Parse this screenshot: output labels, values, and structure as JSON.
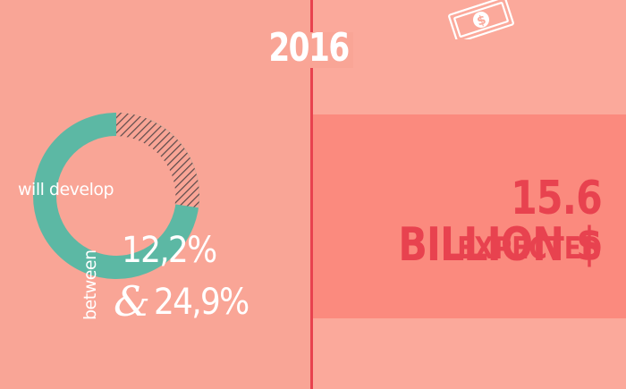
{
  "year": "2016",
  "donut": {
    "label": "will develop",
    "colors": {
      "filled": "#5cb8a4",
      "hatch": "#5a4a4a"
    }
  },
  "range": {
    "prefix": "between",
    "low": "12,2%",
    "amp": "&",
    "high": "24,9%"
  },
  "forecast": {
    "amount": "15.6 BILLION $",
    "note": "EXPECTED"
  },
  "colors": {
    "accent": "#e8424f",
    "background": "#f9a596",
    "highlight": "#fb8a7e"
  },
  "icons": {
    "money": "money-bill-icon"
  }
}
